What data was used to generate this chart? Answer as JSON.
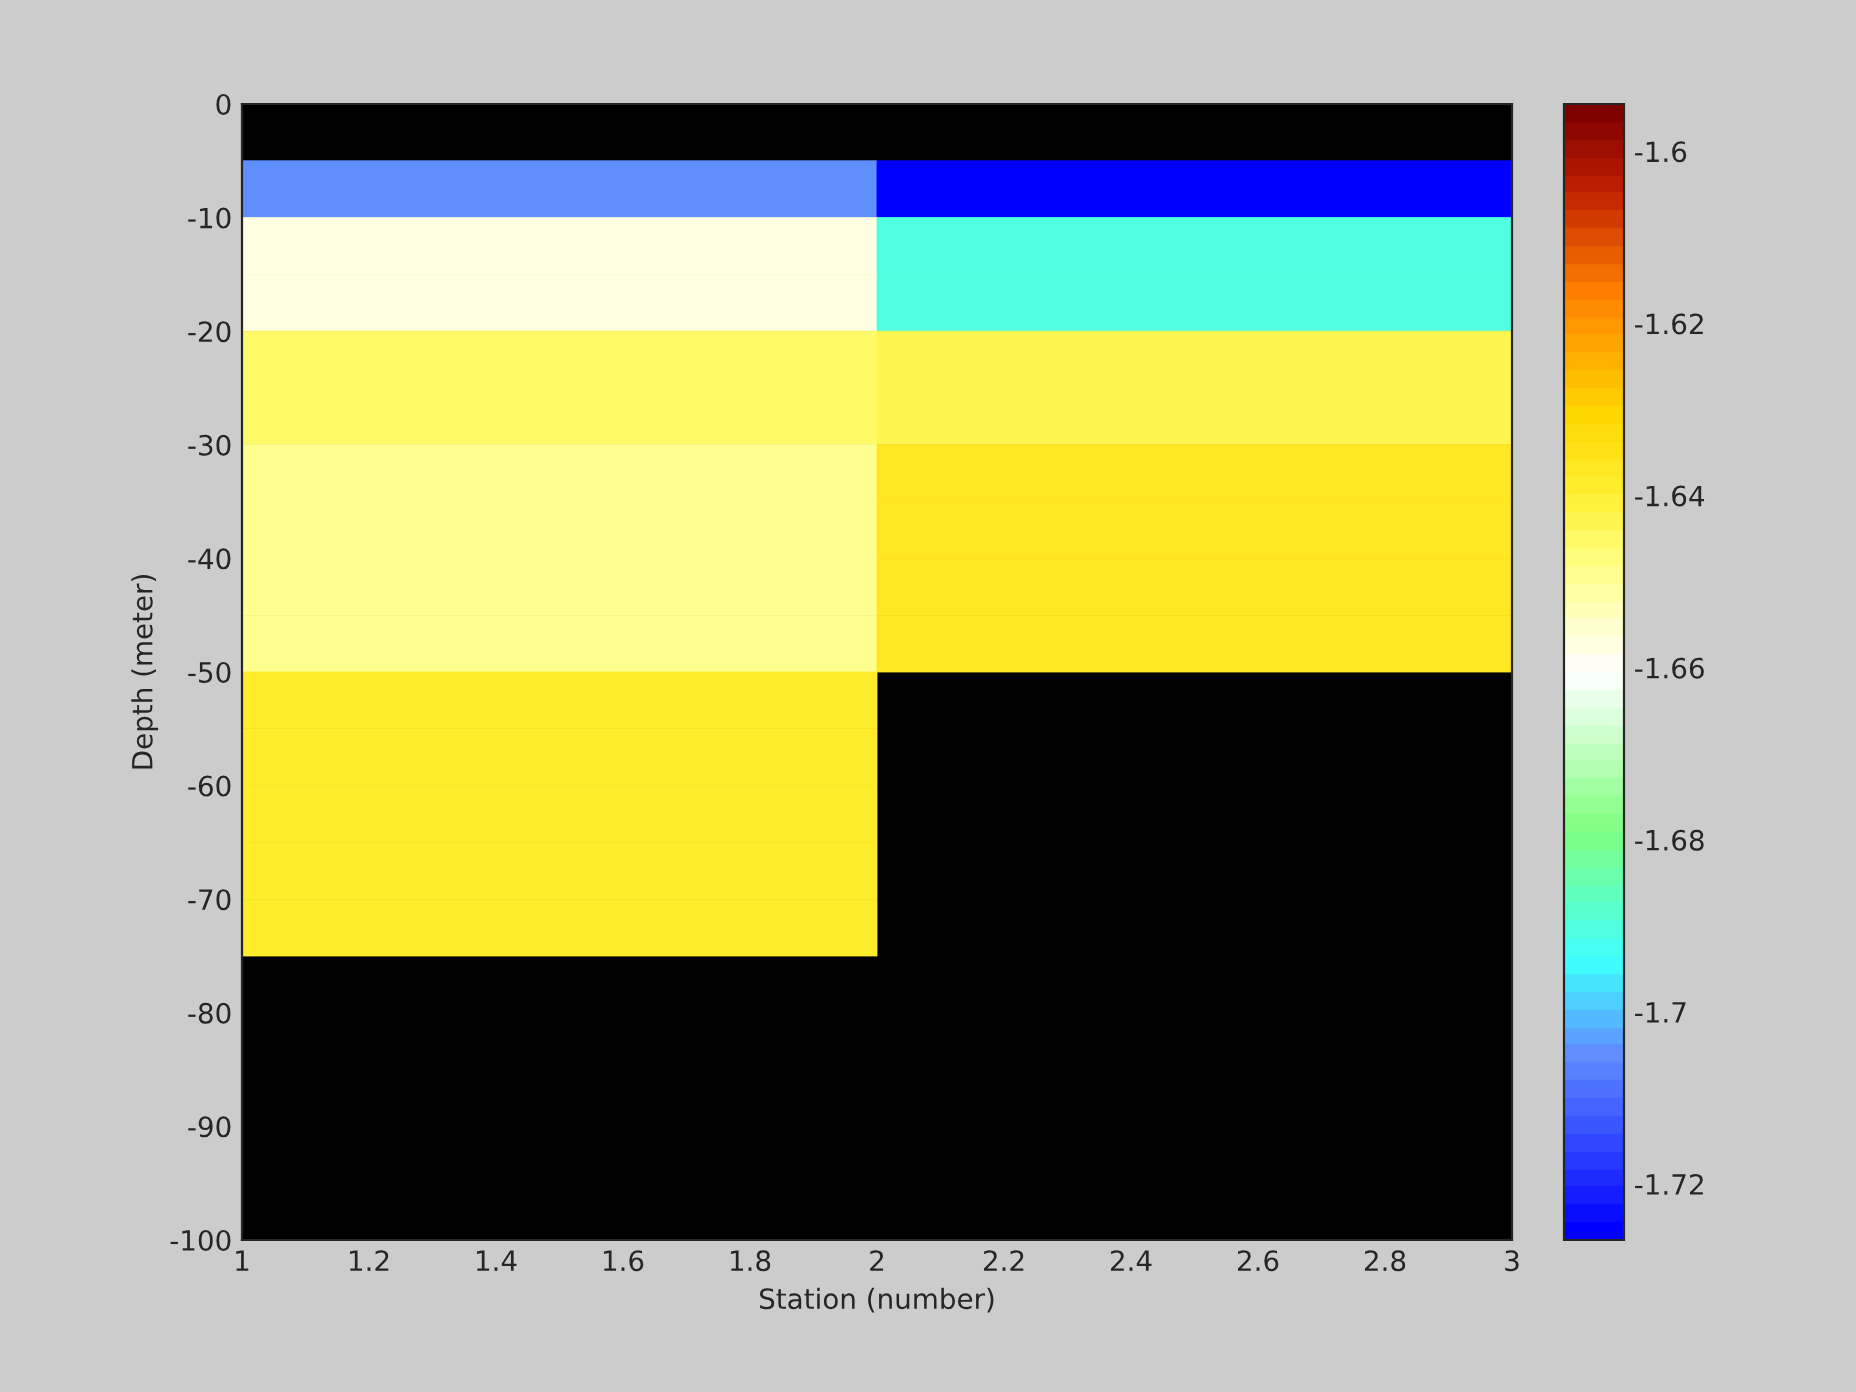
{
  "chart_data": {
    "type": "heatmap",
    "xlabel": "Station (number)",
    "ylabel": "Depth (meter)",
    "x": [
      1.5,
      2.5
    ],
    "y": [
      -7.5,
      -12.5,
      -17.5,
      -22.5,
      -27.5,
      -32.5,
      -37.5,
      -42.5,
      -47.5,
      -52.5,
      -57.5,
      -62.5,
      -67.5,
      -72.5
    ],
    "cells": [
      [
        -1.705,
        -1.725
      ],
      [
        -1.658,
        -1.69
      ],
      [
        -1.658,
        -1.69
      ],
      [
        -1.646,
        -1.644
      ],
      [
        -1.646,
        -1.644
      ],
      [
        -1.649,
        -1.636
      ],
      [
        -1.649,
        -1.636
      ],
      [
        -1.649,
        -1.636
      ],
      [
        -1.649,
        -1.636
      ],
      [
        -1.639,
        null
      ],
      [
        -1.639,
        null
      ],
      [
        -1.639,
        null
      ],
      [
        -1.639,
        null
      ],
      [
        -1.639,
        null
      ]
    ],
    "xlim": [
      1,
      3
    ],
    "xticks": [
      1,
      1.2,
      1.4,
      1.6,
      1.8,
      2,
      2.2,
      2.4,
      2.6,
      2.8,
      3
    ],
    "ylim": [
      -100,
      0
    ],
    "yticks": [
      -100,
      -90,
      -80,
      -70,
      -60,
      -50,
      -40,
      -30,
      -20,
      -10,
      0
    ],
    "clim": [
      -1.7265,
      -1.5945
    ],
    "cticks": [
      -1.72,
      -1.7,
      -1.68,
      -1.66,
      -1.64,
      -1.62,
      -1.6
    ],
    "grid": false
  }
}
